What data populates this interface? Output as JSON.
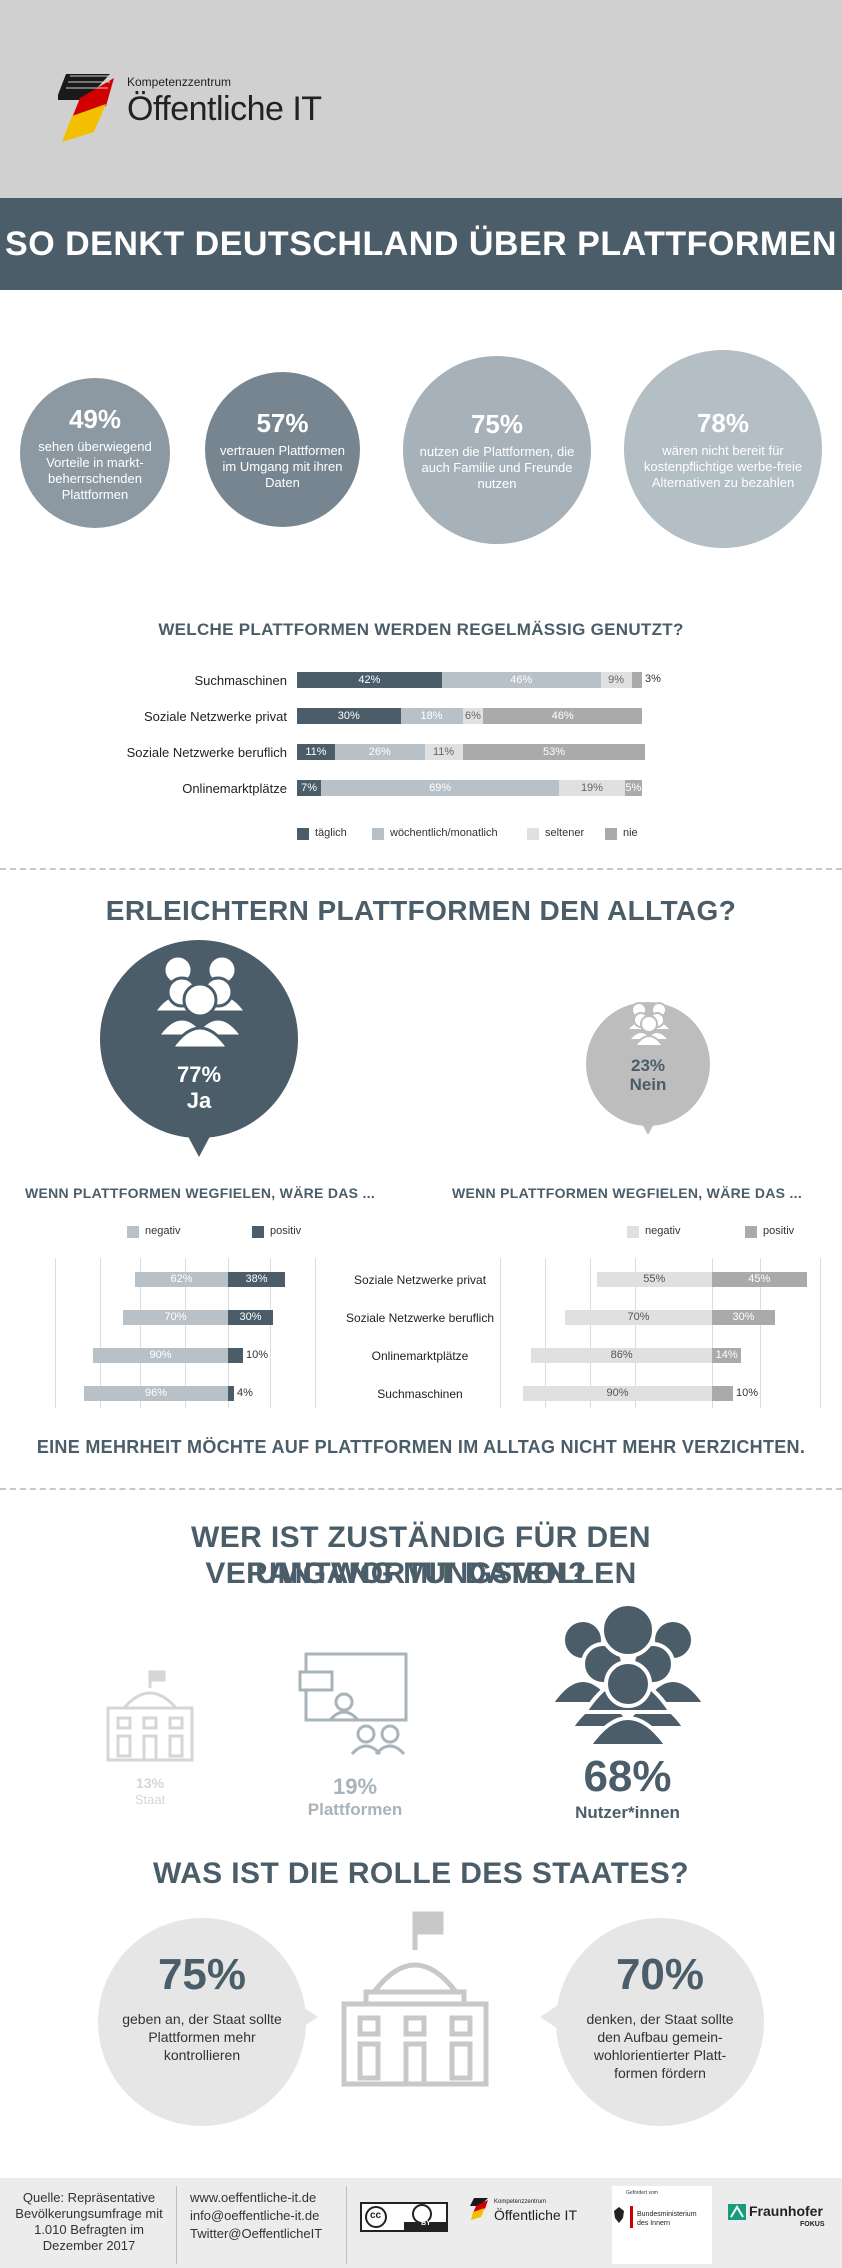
{
  "header": {
    "logo_small": "Kompetenzzentrum",
    "logo_big": "Öffentliche IT",
    "banner_title": "SO DENKT DEUTSCHLAND ÜBER PLATTFORMEN"
  },
  "stats": [
    {
      "pct": "49%",
      "text": "sehen überwiegend Vorteile in markt-beherrschenden Plattformen"
    },
    {
      "pct": "57%",
      "text": "vertrauen Plattformen im Umgang mit ihren Daten"
    },
    {
      "pct": "75%",
      "text": "nutzen die Plattformen, die auch Familie und Freunde nutzen"
    },
    {
      "pct": "78%",
      "text": "wären nicht bereit für kostenpflichtige werbe-freie Alternativen zu bezahlen"
    }
  ],
  "chart_data": [
    {
      "type": "bar",
      "stacked": true,
      "title": "WELCHE PLATTFORMEN WERDEN REGELMÄSSIG GENUTZT?",
      "categories": [
        "Suchmaschinen",
        "Soziale Netzwerke privat",
        "Soziale Netzwerke beruflich",
        "Onlinemarktplätze"
      ],
      "series": [
        {
          "name": "täglich",
          "values": [
            42,
            30,
            11,
            7
          ],
          "color": "#4b5d68"
        },
        {
          "name": "wöchentlich/monatlich",
          "values": [
            46,
            18,
            26,
            69
          ],
          "color": "#b9c1c8"
        },
        {
          "name": "seltener",
          "values": [
            9,
            6,
            11,
            19
          ],
          "color": "#e0e0e0"
        },
        {
          "name": "nie",
          "values": [
            3,
            46,
            53,
            5
          ],
          "color": "#a9aaaa"
        }
      ],
      "labels": [
        [
          "42%",
          "46%",
          "9%",
          "3%"
        ],
        [
          "30%",
          "18%",
          "6%",
          "46%"
        ],
        [
          "11%",
          "26%",
          "11%",
          "53%"
        ],
        [
          "7%",
          "69%",
          "19%",
          "5%"
        ]
      ],
      "legend": "bottom"
    },
    {
      "type": "bar",
      "diverging": true,
      "title": "WENN PLATTFORMEN WEGFIELEN, WÄRE DAS ...",
      "categories": [
        "Soziale Netzwerke privat",
        "Soziale Netzwerke beruflich",
        "Onlinemarktplätze",
        "Suchmaschinen"
      ],
      "series": [
        {
          "name": "negativ",
          "values": [
            62,
            70,
            90,
            96
          ],
          "color": "#b9c1c8"
        },
        {
          "name": "positiv",
          "values": [
            38,
            30,
            10,
            4
          ],
          "color": "#4b5d68"
        }
      ],
      "legend": "top"
    },
    {
      "type": "bar",
      "diverging": true,
      "title": "WENN PLATTFORMEN WEGFIELEN, WÄRE DAS ...",
      "categories": [
        "Soziale Netzwerke privat",
        "Soziale Netzwerke beruflich",
        "Onlinemarktplätze",
        "Suchmaschinen"
      ],
      "series": [
        {
          "name": "negativ",
          "values": [
            55,
            70,
            86,
            90
          ],
          "color": "#e0e0e0"
        },
        {
          "name": "positiv",
          "values": [
            45,
            30,
            14,
            10
          ],
          "color": "#a9aaaa"
        }
      ],
      "legend": "top"
    }
  ],
  "alltag": {
    "title": "ERLEICHTERN PLATTFORMEN DEN ALLTAG?",
    "yes_pct": "77%",
    "yes_label": "Ja",
    "no_pct": "23%",
    "no_label": "Nein",
    "conclusion": "EINE MEHRHEIT MÖCHTE AUF PLATTFORMEN IM ALLTAG NICHT MEHR VERZICHTEN."
  },
  "zustaendig": {
    "title_line1": "WER IST ZUSTÄNDIG FÜR DEN VERANTWORTUNGSVOLLEN",
    "title_line2": "UMGANG MIT DATEN?",
    "items": [
      {
        "pct": "13%",
        "label": "Staat"
      },
      {
        "pct": "19%",
        "label": "Plattformen"
      },
      {
        "pct": "68%",
        "label": "Nutzer*innen"
      }
    ]
  },
  "rolle": {
    "title": "WAS IST DIE ROLLE DES STAATES?",
    "left_pct": "75%",
    "left_text": "geben an, der Staat sollte Plattformen mehr kontrollieren",
    "right_pct": "70%",
    "right_text": "denken, der Staat sollte den Aufbau gemein-wohlorientierter Platt-formen fördern"
  },
  "footer": {
    "source": "Quelle: Repräsentative Bevölkerungsumfrage mit 1.010 Befragten im Dezember 2017",
    "web": "www.oeffentliche-it.de",
    "mail": "info@oeffentliche-it.de",
    "twitter": "Twitter@OeffentlicheIT",
    "cc_label": "BY",
    "logo2_small": "Kompetenzzentrum",
    "logo2_big": "Öffentliche IT",
    "bmi_top": "Gefördert vom",
    "bmi_name": "Bundesministerium des Innern",
    "fraunhofer": "Fraunhofer",
    "fokus": "FOKUS"
  }
}
